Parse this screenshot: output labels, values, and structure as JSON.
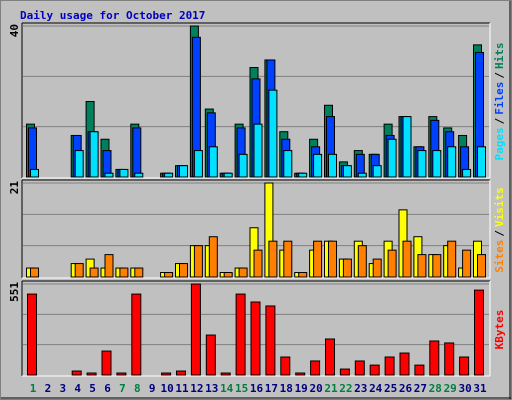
{
  "title": "Daily usage for October 2017",
  "legend_separator": "/",
  "chart_data": [
    {
      "type": "bar",
      "ylim": [
        0,
        40
      ],
      "yticks": [
        40
      ],
      "series": [
        {
          "name": "Hits",
          "color": "#00805c",
          "values": [
            14,
            0,
            0,
            11,
            20,
            10,
            2,
            14,
            0,
            1,
            3,
            40,
            18,
            1,
            14,
            29,
            31,
            12,
            1,
            10,
            19,
            4,
            7,
            6,
            14,
            16,
            8,
            16,
            13,
            11,
            35
          ]
        },
        {
          "name": "Files",
          "color": "#0040ff",
          "values": [
            13,
            0,
            0,
            11,
            12,
            7,
            2,
            13,
            0,
            1,
            3,
            37,
            17,
            1,
            13,
            26,
            31,
            10,
            1,
            8,
            16,
            3,
            6,
            6,
            11,
            16,
            8,
            15,
            12,
            8,
            33
          ]
        },
        {
          "name": "Pages",
          "color": "#00e0ff",
          "values": [
            2,
            0,
            0,
            7,
            12,
            1,
            2,
            1,
            0,
            1,
            3,
            7,
            8,
            1,
            6,
            14,
            23,
            7,
            1,
            6,
            6,
            3,
            1,
            3,
            10,
            16,
            7,
            7,
            8,
            2,
            8
          ]
        }
      ]
    },
    {
      "type": "bar",
      "ylim": [
        0,
        21
      ],
      "yticks": [
        21
      ],
      "series": [
        {
          "name": "Visits",
          "color": "#ffff00",
          "values": [
            2,
            0,
            0,
            3,
            4,
            2,
            2,
            2,
            0,
            1,
            3,
            7,
            7,
            1,
            2,
            11,
            21,
            6,
            1,
            6,
            8,
            4,
            8,
            3,
            8,
            15,
            9,
            5,
            7,
            2,
            8
          ]
        },
        {
          "name": "Sites",
          "color": "#ff8000",
          "values": [
            2,
            0,
            0,
            3,
            2,
            5,
            2,
            2,
            0,
            1,
            3,
            7,
            9,
            1,
            2,
            6,
            8,
            8,
            1,
            8,
            8,
            4,
            7,
            4,
            6,
            8,
            5,
            5,
            8,
            6,
            5
          ]
        }
      ]
    },
    {
      "type": "bar",
      "ylim": [
        0,
        551
      ],
      "yticks": [
        551
      ],
      "categories": [
        "1",
        "2",
        "3",
        "4",
        "5",
        "6",
        "7",
        "8",
        "9",
        "10",
        "11",
        "12",
        "13",
        "14",
        "15",
        "16",
        "17",
        "18",
        "19",
        "20",
        "21",
        "22",
        "23",
        "24",
        "25",
        "26",
        "27",
        "28",
        "29",
        "30",
        "31"
      ],
      "x_label_colors": [
        "#008040",
        "#000080",
        "#000080",
        "#000080",
        "#000080",
        "#000080",
        "#008040",
        "#008040",
        "#000080",
        "#000080",
        "#000080",
        "#000080",
        "#000080",
        "#008040",
        "#008040",
        "#000080",
        "#000080",
        "#000080",
        "#000080",
        "#000080",
        "#008040",
        "#008040",
        "#000080",
        "#000080",
        "#000080",
        "#000080",
        "#000080",
        "#008040",
        "#008040",
        "#000080",
        "#000080"
      ],
      "series": [
        {
          "name": "KBytes",
          "color": "#ff0000",
          "values": [
            490,
            0,
            0,
            24,
            12,
            145,
            12,
            490,
            0,
            12,
            24,
            551,
            242,
            12,
            490,
            442,
            418,
            109,
            12,
            85,
            218,
            36,
            85,
            60,
            109,
            133,
            60,
            206,
            194,
            109,
            514
          ]
        }
      ]
    }
  ]
}
